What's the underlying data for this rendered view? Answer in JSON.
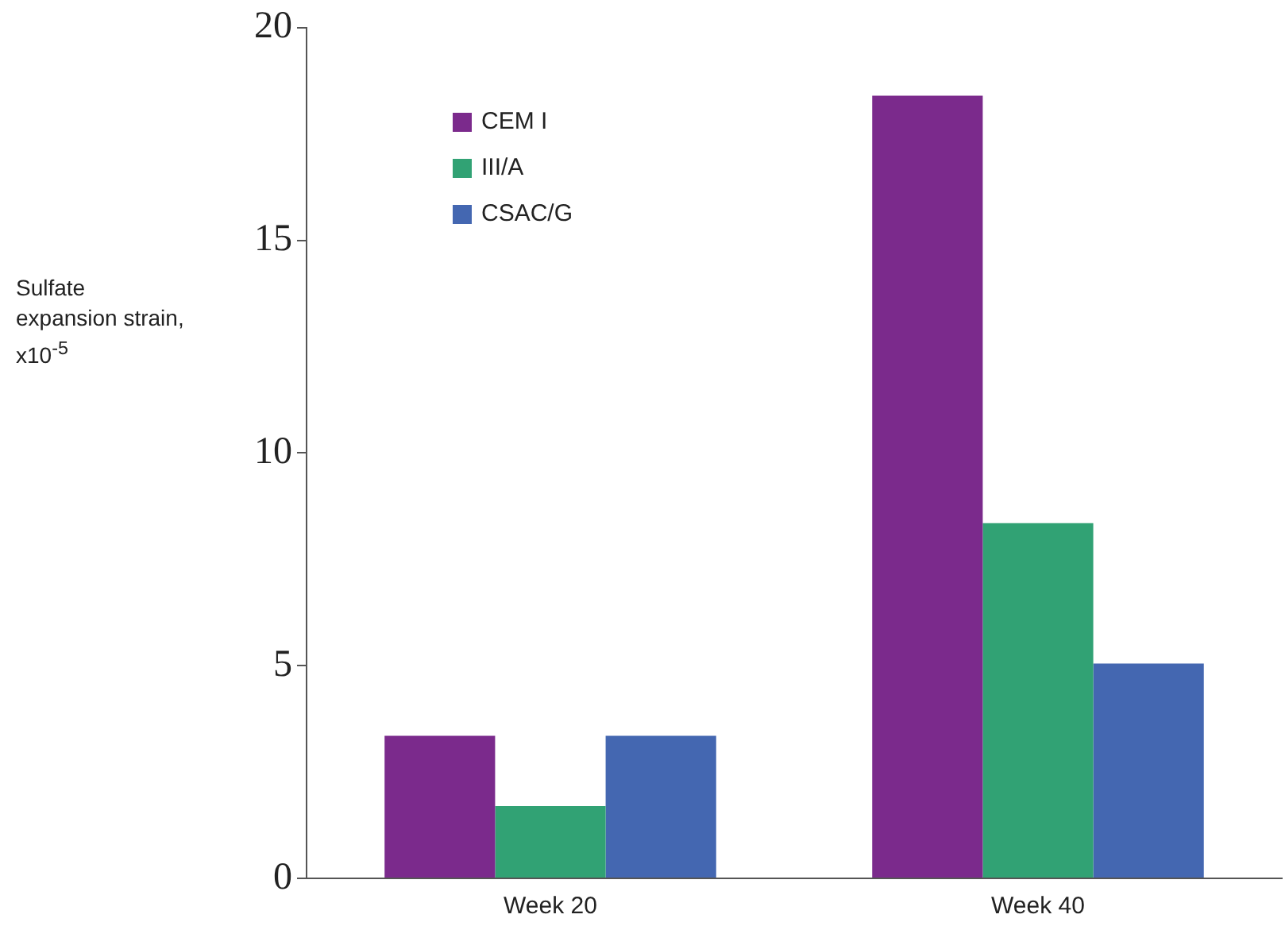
{
  "chart_data": {
    "type": "bar",
    "ylabel": "Sulfate expansion strain, x10$^{-5}$",
    "categories": [
      "Week 20",
      "Week 40"
    ],
    "series": [
      {
        "name": "CEM I",
        "color": "#7b2a8c",
        "values": [
          3.35,
          18.4
        ]
      },
      {
        "name": "III/A",
        "color": "#31a274",
        "values": [
          1.7,
          8.35
        ]
      },
      {
        "name": "CSAC/G",
        "color": "#4467b1",
        "values": [
          3.35,
          5.05
        ]
      }
    ],
    "ylim": [
      0,
      20
    ],
    "yticks": [
      0,
      5,
      10,
      15,
      20
    ],
    "grid": false,
    "legend": "top left"
  }
}
